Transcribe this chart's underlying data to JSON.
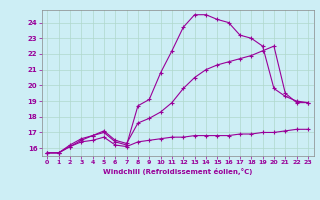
{
  "xlabel": "Windchill (Refroidissement éolien,°C)",
  "bg_color": "#cdeef5",
  "line_color": "#990099",
  "grid_color": "#b0d8cc",
  "xmin": -0.5,
  "xmax": 23.5,
  "ymin": 15.5,
  "ymax": 24.8,
  "yticks": [
    16,
    17,
    18,
    19,
    20,
    21,
    22,
    23,
    24
  ],
  "xticks": [
    0,
    1,
    2,
    3,
    4,
    5,
    6,
    7,
    8,
    9,
    10,
    11,
    12,
    13,
    14,
    15,
    16,
    17,
    18,
    19,
    20,
    21,
    22,
    23
  ],
  "series1_x": [
    0,
    1,
    2,
    3,
    4,
    5,
    6,
    7,
    8,
    9,
    10,
    11,
    12,
    13,
    14,
    15,
    16,
    17,
    18,
    19,
    20,
    21,
    22,
    23
  ],
  "series1_y": [
    15.7,
    15.7,
    16.1,
    16.5,
    16.8,
    17.0,
    16.4,
    16.2,
    18.7,
    19.1,
    20.8,
    22.2,
    23.7,
    24.5,
    24.5,
    24.2,
    24.0,
    23.2,
    23.0,
    22.5,
    19.8,
    19.3,
    19.0,
    18.9
  ],
  "series2_x": [
    0,
    1,
    2,
    3,
    4,
    5,
    6,
    7,
    8,
    9,
    10,
    11,
    12,
    13,
    14,
    15,
    16,
    17,
    18,
    19,
    20,
    21,
    22,
    23
  ],
  "series2_y": [
    15.7,
    15.7,
    16.2,
    16.6,
    16.8,
    17.1,
    16.5,
    16.3,
    17.6,
    17.9,
    18.3,
    18.9,
    19.8,
    20.5,
    21.0,
    21.3,
    21.5,
    21.7,
    21.9,
    22.2,
    22.5,
    19.5,
    18.9,
    18.9
  ],
  "series3_x": [
    0,
    1,
    2,
    3,
    4,
    5,
    6,
    7,
    8,
    9,
    10,
    11,
    12,
    13,
    14,
    15,
    16,
    17,
    18,
    19,
    20,
    21,
    22,
    23
  ],
  "series3_y": [
    15.7,
    15.7,
    16.1,
    16.4,
    16.5,
    16.7,
    16.2,
    16.1,
    16.4,
    16.5,
    16.6,
    16.7,
    16.7,
    16.8,
    16.8,
    16.8,
    16.8,
    16.9,
    16.9,
    17.0,
    17.0,
    17.1,
    17.2,
    17.2
  ]
}
